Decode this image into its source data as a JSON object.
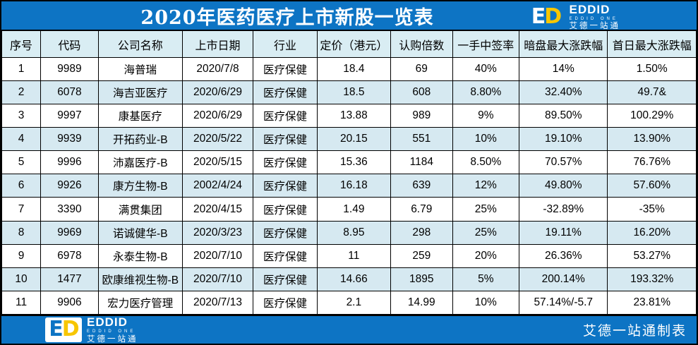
{
  "title": "2020年医药医疗上市新股一览表",
  "brand": {
    "icon_letter_e": "E",
    "icon_letter_d": "D",
    "wordmark": "EDDID",
    "subtitle": "EDDID ONE",
    "tagline": "艾德一站通",
    "footer_credit": "艾德一站通制表"
  },
  "colors": {
    "bar_blue": "#0d74c4",
    "table_header_bg": "#d9edf3",
    "alt_row_bg": "#d6e9f1",
    "logo_yellow": "#f7c600",
    "border": "#000000"
  },
  "table": {
    "columns": [
      "序号",
      "代码",
      "公司名称",
      "上市日期",
      "行业",
      "定价（港元）",
      "认购倍数",
      "一手中签率",
      "暗盘最大涨跌幅",
      "首日最大涨跌幅"
    ],
    "column_keys": [
      "index",
      "code",
      "company",
      "list-date",
      "industry",
      "price-hkd",
      "subscription-multiple",
      "lot-win-rate",
      "grey-market-max-change",
      "first-day-max-change"
    ],
    "column_widths_pct": [
      5.6,
      8.3,
      12.1,
      10.2,
      9.2,
      10.6,
      8.9,
      9.6,
      12.75,
      12.75
    ],
    "rows": [
      [
        "1",
        "9989",
        "海普瑞",
        "2020/7/8",
        "医疗保健",
        "18.4",
        "69",
        "40%",
        "14%",
        "1.50%"
      ],
      [
        "2",
        "6078",
        "海吉亚医疗",
        "2020/6/29",
        "医疗保健",
        "18.5",
        "608",
        "8.80%",
        "32.40%",
        "49.7&"
      ],
      [
        "3",
        "9997",
        "康基医疗",
        "2020/6/29",
        "医疗保健",
        "13.88",
        "989",
        "9%",
        "89.50%",
        "100.29%"
      ],
      [
        "4",
        "9939",
        "开拓药业-B",
        "2020/5/22",
        "医疗保健",
        "20.15",
        "551",
        "10%",
        "19.10%",
        "13.90%"
      ],
      [
        "5",
        "9996",
        "沛嘉医疗-B",
        "2020/5/15",
        "医疗保健",
        "15.36",
        "1184",
        "8.50%",
        "70.57%",
        "76.76%"
      ],
      [
        "6",
        "9926",
        "康方生物-B",
        "2002/4/24",
        "医疗保健",
        "16.18",
        "639",
        "12%",
        "49.80%",
        "57.60%"
      ],
      [
        "7",
        "3390",
        "满贯集团",
        "2020/4/15",
        "医疗保健",
        "1.49",
        "6.79",
        "25%",
        "-32.89%",
        "-35%"
      ],
      [
        "8",
        "9969",
        "诺诚健华-B",
        "2020/3/23",
        "医疗保健",
        "8.95",
        "298",
        "25%",
        "19.11%",
        "16.20%"
      ],
      [
        "9",
        "6978",
        "永泰生物-B",
        "2020/7/10",
        "医疗保健",
        "11",
        "259",
        "20%",
        "26.36%",
        "53.27%"
      ],
      [
        "10",
        "1477",
        "欧康维视生物-B",
        "2020/7/10",
        "医疗保健",
        "14.66",
        "1895",
        "5%",
        "200.14%",
        "193.32%"
      ],
      [
        "11",
        "9906",
        "宏力医疗管理",
        "2020/7/13",
        "医疗保健",
        "2.1",
        "14.99",
        "10%",
        "57.14%/-5.7",
        "23.81%"
      ]
    ]
  }
}
